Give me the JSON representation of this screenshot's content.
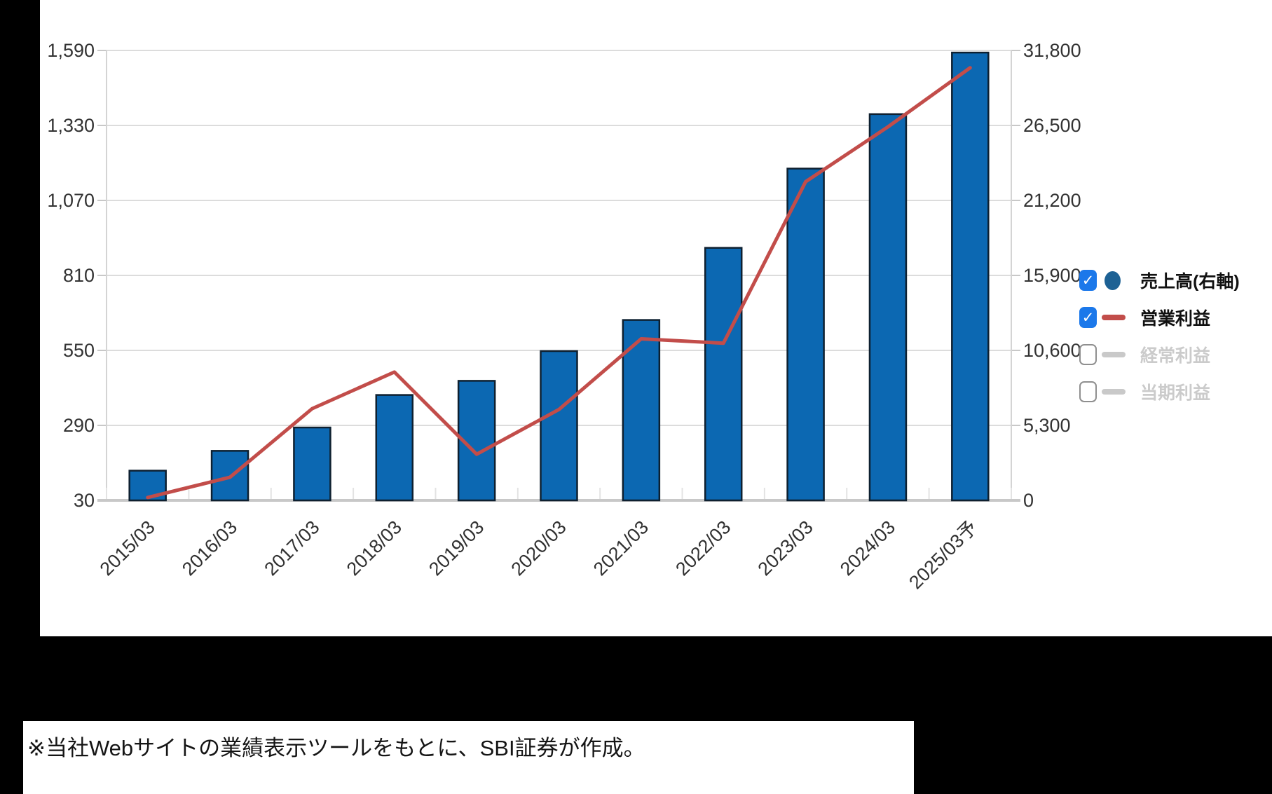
{
  "chart_data": {
    "type": "bar+line combo",
    "title": "",
    "categories": [
      "2015/03",
      "2016/03",
      "2017/03",
      "2018/03",
      "2019/03",
      "2020/03",
      "2021/03",
      "2022/03",
      "2023/03",
      "2024/03",
      "2025/03予"
    ],
    "series": [
      {
        "name": "売上高(右軸)",
        "type": "bar",
        "axis": "right",
        "color": "#0c68b2",
        "values": [
          2100,
          3500,
          5150,
          7450,
          8450,
          10550,
          12750,
          17850,
          23450,
          27300,
          31650
        ]
      },
      {
        "name": "営業利益",
        "type": "line",
        "axis": "left",
        "color": "#c24d4a",
        "values": [
          40,
          110,
          348,
          475,
          190,
          345,
          590,
          575,
          1135,
          1325,
          1530
        ]
      }
    ],
    "left_axis": {
      "min": 30,
      "max": 1590,
      "ticks": [
        30,
        290,
        550,
        810,
        1070,
        1330,
        1590
      ]
    },
    "right_axis": {
      "min": 0,
      "max": 31800,
      "ticks": [
        0,
        5300,
        10600,
        15900,
        21200,
        26500,
        31800
      ]
    },
    "grid": true,
    "legend_position": "right",
    "x_label_rotation_deg": -45
  },
  "legend": {
    "items": [
      {
        "label": "売上高(右軸)",
        "checked": true,
        "disabled": false,
        "marker": "circle",
        "marker_color": "#1d6194"
      },
      {
        "label": "営業利益",
        "checked": true,
        "disabled": false,
        "marker": "line",
        "marker_color": "#c24d4a"
      },
      {
        "label": "経常利益",
        "checked": false,
        "disabled": true,
        "marker": "line",
        "marker_color": "#c9c9c9"
      },
      {
        "label": "当期利益",
        "checked": false,
        "disabled": true,
        "marker": "line",
        "marker_color": "#c9c9c9"
      }
    ]
  },
  "caption": {
    "text": "※当社Webサイトの業績表示ツールをもとに、SBI証券が作成。"
  },
  "colors": {
    "background": "#000000",
    "panel": "#ffffff",
    "gridline": "#dcdcdc",
    "baseline": "#c8c8c8",
    "axis_line": "#d4d4d4",
    "bar_fill": "#0c68b2",
    "bar_border": "#0e2030",
    "line": "#c24d4a",
    "tick_text": "#333333",
    "checkbox_checked": "#1b78ea",
    "legend_text": "#111111",
    "legend_text_disabled": "#cbcbcb"
  }
}
